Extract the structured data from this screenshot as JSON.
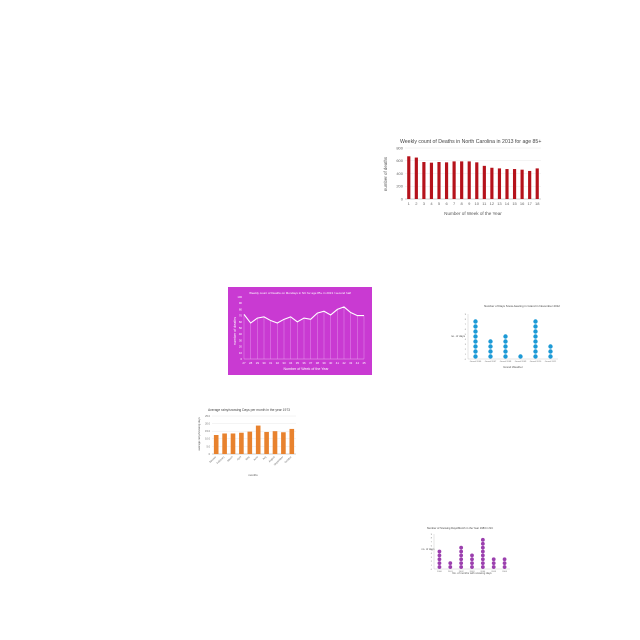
{
  "chart_data": [
    {
      "type": "bar",
      "title": "Weekly count of Deaths in North Carolina in 2013 for age 85+",
      "xlabel": "Number of Week of the Year",
      "ylabel": "number of deaths",
      "categories": [
        "1",
        "2",
        "3",
        "4",
        "5",
        "6",
        "7",
        "8",
        "9",
        "10",
        "11",
        "12",
        "13",
        "14",
        "15",
        "16",
        "17",
        "18"
      ],
      "values": [
        670,
        650,
        580,
        570,
        580,
        575,
        590,
        590,
        590,
        575,
        520,
        490,
        480,
        470,
        470,
        460,
        440,
        480
      ],
      "ylim": [
        0,
        800
      ],
      "yticks": [
        "0",
        "200",
        "400",
        "600",
        "800"
      ],
      "grid": true,
      "colors": {
        "bar": "#b5121b"
      }
    },
    {
      "type": "line",
      "title": "Weekly count of Deaths on Mondays in NC for age 85+ in 2013 / second half",
      "xlabel": "Number of Week of the Year",
      "ylabel": "number of deaths",
      "categories": [
        "27",
        "28",
        "29",
        "30",
        "31",
        "32",
        "33",
        "34",
        "35",
        "36",
        "37",
        "38",
        "39",
        "40",
        "41",
        "42",
        "43",
        "44",
        "45"
      ],
      "values": [
        72,
        58,
        66,
        68,
        62,
        58,
        64,
        68,
        60,
        66,
        64,
        74,
        77,
        71,
        80,
        84,
        75,
        70,
        70
      ],
      "ylim": [
        0,
        100
      ],
      "yticks": [
        "0",
        "10",
        "20",
        "30",
        "40",
        "50",
        "60",
        "70",
        "80",
        "90",
        "100"
      ],
      "grid": false,
      "colors": {
        "background": "#c93ad2",
        "line": "#ffffff"
      }
    },
    {
      "type": "scatter",
      "title": "Number of Days Snow-bearing in Grand in November 2012",
      "xlabel": "Grand Weather",
      "ylabel": "no. of days",
      "categories": [
        "Grand 2006",
        "Grand 2007",
        "Grand 2008",
        "Grand 2009",
        "Grand 2010",
        "Grand 2011"
      ],
      "values": [
        8,
        4,
        5,
        1,
        8,
        3
      ],
      "ylim": [
        0,
        9
      ],
      "yticks": [
        "0",
        "1",
        "2",
        "3",
        "4",
        "5",
        "6",
        "7",
        "8",
        "9"
      ],
      "colors": {
        "dot": "#1d9ad6"
      }
    },
    {
      "type": "bar",
      "title": "Average rainy/snowing Days per month in the year 1973",
      "xlabel": "months",
      "ylabel": "average rainy/snowing days",
      "categories": [
        "January",
        "February",
        "March",
        "April",
        "May",
        "June",
        "July",
        "August",
        "September",
        "October"
      ],
      "values": [
        12.5,
        13.5,
        13.5,
        14,
        14.7,
        18.7,
        14.5,
        15,
        14.3,
        16.5
      ],
      "ylim": [
        0,
        25
      ],
      "yticks": [
        "0",
        "5.0",
        "10.0",
        "15.0",
        "20.0",
        "25.0"
      ],
      "grid": true,
      "colors": {
        "bar": "#e8822e"
      }
    },
    {
      "type": "scatter",
      "title": "Number of Snowing Days/Month in the Year 1983 in NC",
      "xlabel": "No. of months with snowing days",
      "ylabel": "no. of days",
      "categories": [
        "2000",
        "2001",
        "2002",
        "2003",
        "2004",
        "2005",
        "2006"
      ],
      "values": [
        5,
        2,
        6,
        4,
        8,
        3,
        3
      ],
      "ylim": [
        0,
        9
      ],
      "yticks": [
        "0",
        "1",
        "2",
        "3",
        "4",
        "5",
        "6",
        "7",
        "8",
        "9"
      ],
      "colors": {
        "dot": "#9b3fae"
      }
    }
  ]
}
